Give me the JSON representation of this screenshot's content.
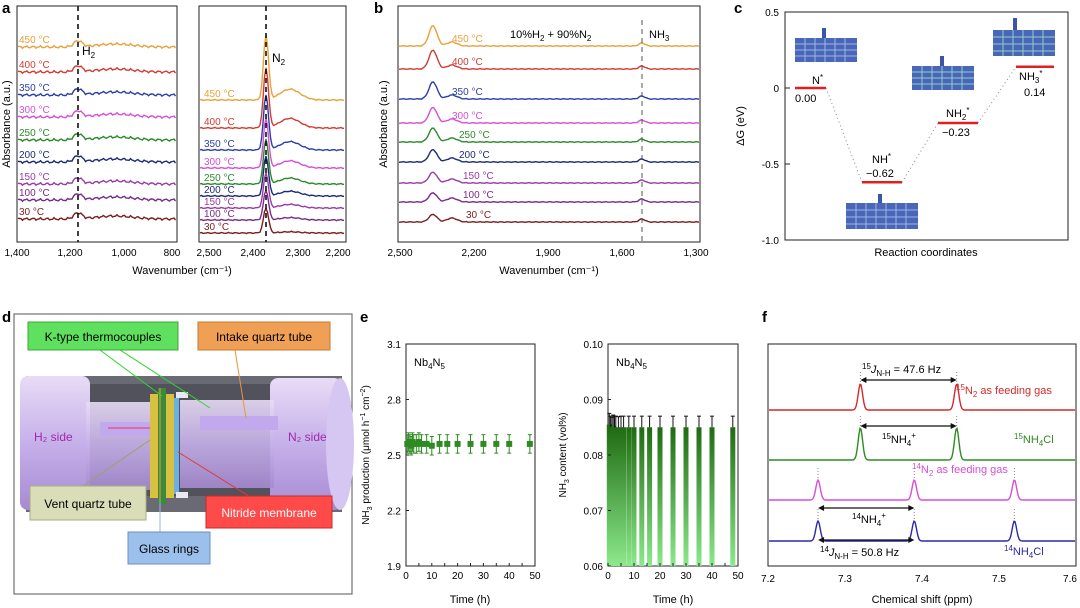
{
  "colors": {
    "t450": "#e8a13a",
    "t400": "#d43a32",
    "t350": "#2b3fa8",
    "t300": "#d64fd6",
    "t250": "#2a8a2a",
    "t200": "#1c2a78",
    "t150": "#9a3aa8",
    "t100": "#7a2a8a",
    "t30": "#7a1e1e",
    "green": "#2e8b22",
    "lightgreen": "#7ee07e",
    "red": "#d42a2a",
    "blue": "#2a2aa8"
  },
  "temps": [
    "450 °C",
    "400 °C",
    "350 °C",
    "300 °C",
    "250 °C",
    "200 °C",
    "150 °C",
    "100 °C",
    "30 °C"
  ],
  "panel_a": {
    "label": "a",
    "ylabel": "Absorbance (a.u.)",
    "xlabel": "Wavenumber (cm⁻¹)",
    "left": {
      "marker": "H",
      "marker_sub": "2",
      "xticks": [
        "1,400",
        "1,200",
        "1,000",
        "800"
      ]
    },
    "right": {
      "marker": "N",
      "marker_sub": "2",
      "xticks": [
        "2,500",
        "2,400",
        "2,300",
        "2,200"
      ]
    }
  },
  "panel_b": {
    "label": "b",
    "ylabel": "Absorbance (a.u.)",
    "xlabel": "Wavenumber (cm⁻¹)",
    "gas_parts": [
      "10%H",
      "2",
      " + 90%N",
      "2"
    ],
    "marker": "NH",
    "marker_sub": "3",
    "xticks": [
      "2,500",
      "2,200",
      "1,900",
      "1,600",
      "1,300"
    ]
  },
  "chart_data": [
    {
      "type": "line",
      "panel": "c",
      "title": "",
      "xlabel": "Reaction coordinates",
      "ylabel": "ΔG (eV)",
      "ylim": [
        -1.0,
        0.5
      ],
      "yticks": [
        "0.5",
        "0",
        "-0.5",
        "-1.0"
      ],
      "x": [
        "N*",
        "NH*",
        "NH2*",
        "NH3*"
      ],
      "values": [
        0.0,
        -0.62,
        -0.23,
        0.14
      ],
      "labels": [
        {
          "name": "N",
          "sub": "",
          "sup": "*",
          "value": "0.00"
        },
        {
          "name": "NH",
          "sub": "",
          "sup": "*",
          "value": "−0.62"
        },
        {
          "name": "NH",
          "sub": "2",
          "sup": "*",
          "value": "−0.23"
        },
        {
          "name": "NH",
          "sub": "3",
          "sup": "*",
          "value": "0.14"
        }
      ]
    },
    {
      "type": "scatter",
      "panel": "e-left",
      "xlabel": "Time (h)",
      "ylabel": "NH3 production (μmol h−1 cm−2)",
      "ylabel_parts": [
        "NH",
        "3",
        " production (μmol h",
        "−1",
        " cm",
        "−2",
        ")"
      ],
      "xlim": [
        0,
        50
      ],
      "ylim": [
        1.9,
        3.1
      ],
      "xticks": [
        "0",
        "5",
        "10",
        "15",
        "20",
        "25",
        "30",
        "35",
        "40",
        "45",
        "50"
      ],
      "yticks": [
        "1.9",
        "2.2",
        "2.5",
        "2.8",
        "3.1"
      ],
      "inset": "Nb4N5",
      "x": [
        0.5,
        1,
        1.5,
        2,
        2.5,
        3,
        4,
        5,
        6,
        8,
        10,
        13,
        16,
        20,
        25,
        30,
        35,
        40,
        48
      ],
      "values": [
        2.56,
        2.57,
        2.56,
        2.55,
        2.57,
        2.56,
        2.56,
        2.57,
        2.56,
        2.56,
        2.55,
        2.56,
        2.56,
        2.56,
        2.56,
        2.56,
        2.56,
        2.56,
        2.56
      ],
      "error": 0.05
    },
    {
      "type": "bar",
      "panel": "e-right",
      "xlabel": "Time (h)",
      "ylabel": "NH3 content (vol%)",
      "ylabel_parts": [
        "NH",
        "3",
        " content (vol%)"
      ],
      "xlim": [
        0,
        50
      ],
      "ylim": [
        0.06,
        0.1
      ],
      "xticks": [
        "0",
        "5",
        "10",
        "15",
        "20",
        "25",
        "30",
        "35",
        "40",
        "45",
        "50"
      ],
      "yticks": [
        "0.06",
        "0.07",
        "0.08",
        "0.09",
        "0.10"
      ],
      "inset": "Nb4N5",
      "x": [
        0.5,
        1,
        1.5,
        2,
        2.5,
        3,
        4,
        5,
        6,
        8,
        10,
        13,
        16,
        20,
        25,
        30,
        35,
        40,
        48
      ],
      "values": [
        0.0855,
        0.085,
        0.0848,
        0.0852,
        0.085,
        0.085,
        0.0849,
        0.085,
        0.085,
        0.085,
        0.085,
        0.085,
        0.085,
        0.085,
        0.085,
        0.085,
        0.085,
        0.085,
        0.085
      ],
      "error": 0.002
    },
    {
      "type": "line",
      "panel": "f",
      "xlabel": "Chemical shift (ppm)",
      "xlim": [
        7.6,
        7.2
      ],
      "xticks": [
        "7.2",
        "7.3",
        "7.4",
        "7.5",
        "7.6"
      ],
      "series": [
        {
          "name": "15N2 as feeding gas",
          "peaks": [
            7.32,
            7.445
          ]
        },
        {
          "name": "15NH4Cl",
          "peaks": [
            7.32,
            7.445
          ]
        },
        {
          "name": "14N2 as feeding gas",
          "peaks": [
            7.265,
            7.39,
            7.52
          ]
        },
        {
          "name": "14NH4Cl",
          "peaks": [
            7.265,
            7.39,
            7.52
          ]
        }
      ]
    }
  ],
  "panel_c": {
    "label": "c"
  },
  "panel_d": {
    "label": "d",
    "thermocouples": "K-type thermocouples",
    "intake": "Intake quartz tube",
    "h2_side": "H₂ side",
    "n2_side": "N₂ side",
    "vent": "Vent quartz tube",
    "membrane": "Nitride membrane",
    "glass": "Glass rings"
  },
  "panel_e": {
    "label": "e",
    "inset_name": "Nb",
    "inset_sub1": "4",
    "inset_n": "N",
    "inset_sub2": "5"
  },
  "panel_f": {
    "label": "f",
    "j15": "J",
    "j15_pre": "15",
    "j15_sub": "N-H",
    "j15_val": " = 47.6 Hz",
    "j14": "J",
    "j14_pre": "14",
    "j14_sub": "N-H",
    "j14_val": " = 50.8 Hz",
    "l1_pre": "15",
    "l1": "N",
    "l1_sub": "2",
    "l1_post": " as feeding gas",
    "l2_pre": "15",
    "l2": "NH",
    "l2_sub": "4",
    "l2_post": "Cl",
    "l3_pre": "14",
    "l3": "N",
    "l3_sub": "2",
    "l3_post": " as feeding gas",
    "l4_pre": "14",
    "l4": "NH",
    "l4_sub": "4",
    "l4_post": "Cl",
    "ion15_pre": "15",
    "ion15": "NH",
    "ion15_sub": "4",
    "ion15_sup": "+",
    "ion14_pre": "14",
    "ion14": "NH",
    "ion14_sub": "4",
    "ion14_sup": "+"
  }
}
